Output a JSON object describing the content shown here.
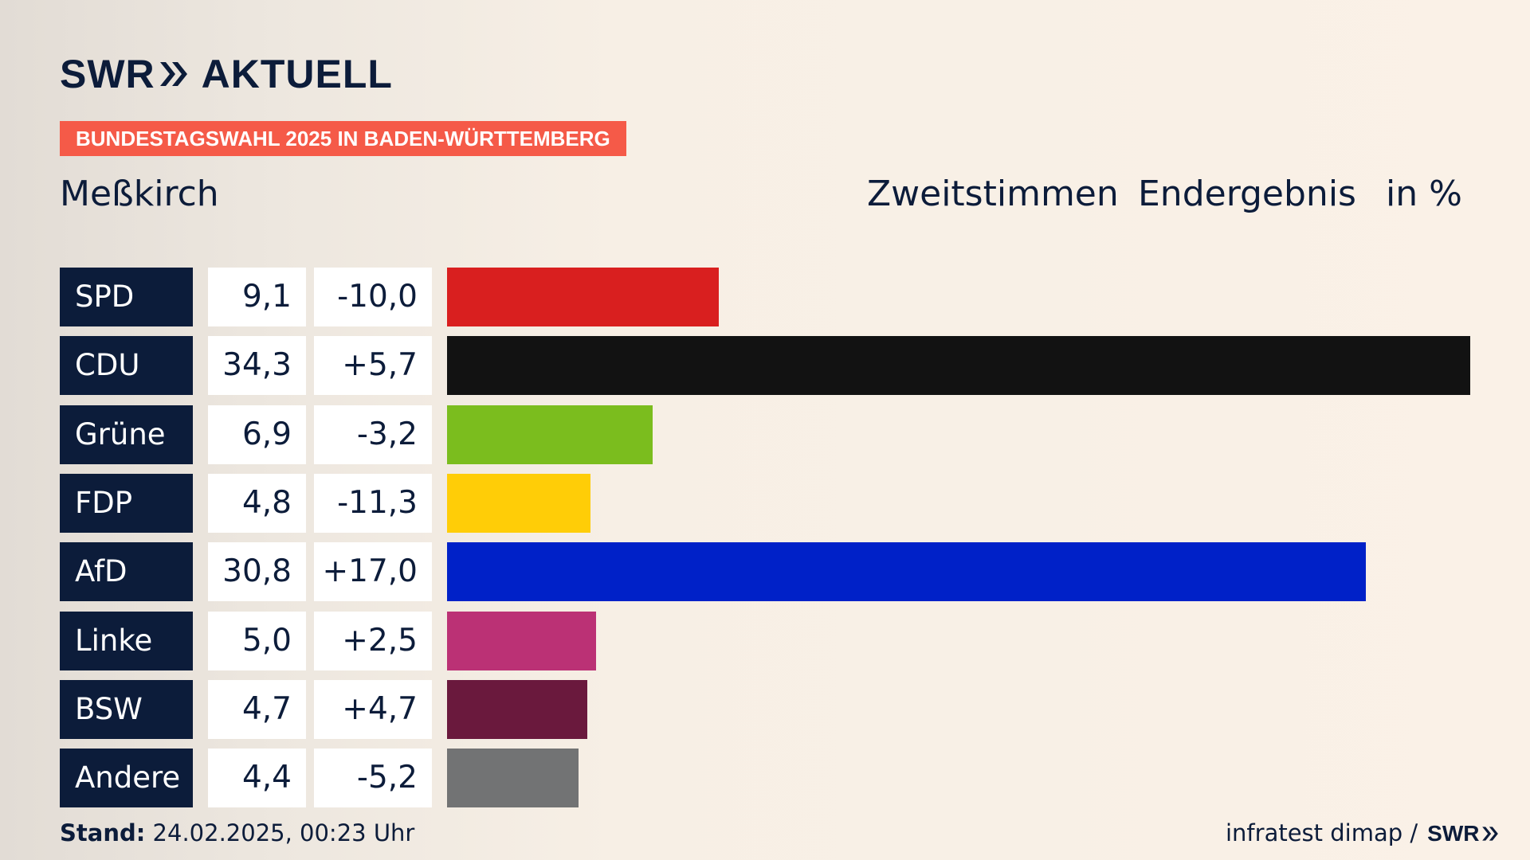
{
  "brand": {
    "swr": "SWR",
    "name": "AKTUELL"
  },
  "banner": "BUNDESTAGSWAHL 2025 IN BADEN-WÜRTTEMBERG",
  "location": "Meßkirch",
  "header": {
    "zweitstimmen": "Zweitstimmen",
    "endergebnis": "Endergebnis",
    "unit": "in %"
  },
  "chart_data": {
    "type": "bar",
    "orientation": "horizontal",
    "title": "Meßkirch",
    "categories": [
      "SPD",
      "CDU",
      "Grüne",
      "FDP",
      "AfD",
      "Linke",
      "BSW",
      "Andere"
    ],
    "values": [
      9.1,
      34.3,
      6.9,
      4.8,
      30.8,
      5.0,
      4.7,
      4.4
    ],
    "value_labels": [
      "9,1",
      "34,3",
      "6,9",
      "4,8",
      "30,8",
      "5,0",
      "4,7",
      "4,4"
    ],
    "changes": [
      -10.0,
      5.7,
      -3.2,
      -11.3,
      17.0,
      2.5,
      4.7,
      -5.2
    ],
    "change_labels": [
      "-10,0",
      "+5,7",
      "-3,2",
      "-11,3",
      "+17,0",
      "+2,5",
      "+4,7",
      "-5,2"
    ],
    "colors": [
      "#d91f1f",
      "#121212",
      "#7bbd1e",
      "#ffcd07",
      "#0021c8",
      "#bb3175",
      "#6a193d",
      "#727374"
    ],
    "xlim": [
      0,
      34.3
    ],
    "grid": false,
    "legend": "none"
  },
  "footer": {
    "stand_label": "Stand:",
    "stand_value": "24.02.2025, 00:23 Uhr",
    "source": "infratest dimap /",
    "source_brand": "SWR"
  }
}
